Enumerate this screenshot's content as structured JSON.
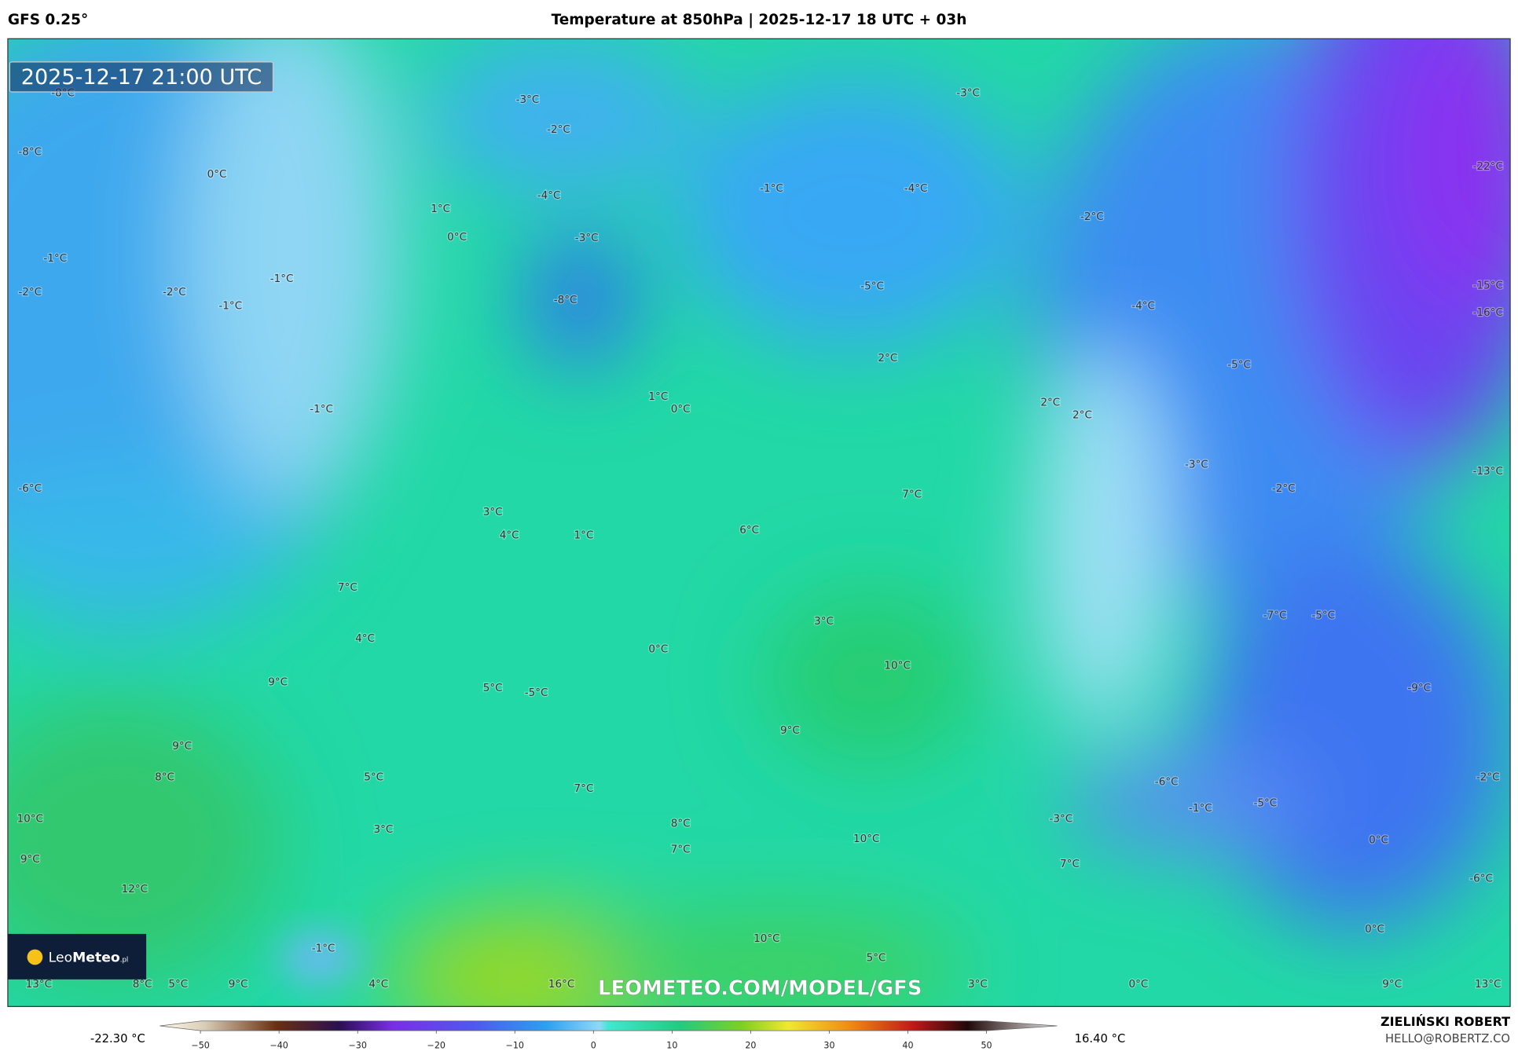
{
  "header": {
    "model": "GFS 0.25°",
    "title": "Temperature at 850hPa | 2025-12-17 18 UTC + 03h"
  },
  "map": {
    "timestamp": "2025-12-17 21:00 UTC",
    "labels": [
      "-8°C",
      "-3°C",
      "-2°C",
      "-3°C",
      "-8°C",
      "0°C",
      "-1°C",
      "-4°C",
      "-22°C",
      "-4°C",
      "1°C",
      "-2°C",
      "0°C",
      "-3°C",
      "-1°C",
      "-2°C",
      "-2°C",
      "-1°C",
      "-1°C",
      "-8°C",
      "-5°C",
      "-4°C",
      "-15°C",
      "-16°C",
      "2°C",
      "-5°C",
      "1°C",
      "0°C",
      "2°C",
      "2°C",
      "-1°C",
      "-3°C",
      "-13°C",
      "-6°C",
      "-2°C",
      "7°C",
      "3°C",
      "4°C",
      "1°C",
      "6°C",
      "7°C",
      "3°C",
      "-7°C",
      "-5°C",
      "4°C",
      "0°C",
      "10°C",
      "9°C",
      "5°C",
      "-5°C",
      "-9°C",
      "9°C",
      "9°C",
      "8°C",
      "5°C",
      "-6°C",
      "-2°C",
      "7°C",
      "-1°C",
      "-5°C",
      "10°C",
      "-3°C",
      "8°C",
      "3°C",
      "10°C",
      "0°C",
      "9°C",
      "7°C",
      "7°C",
      "12°C",
      "-6°C",
      "0°C",
      "10°C",
      "-1°C",
      "5°C",
      "13°C",
      "8°C",
      "5°C",
      "9°C",
      "4°C",
      "16°C",
      "3°C",
      "0°C",
      "9°C",
      "13°C"
    ],
    "watermark": "LEOMETEO.COM/MODEL/GFS",
    "logo": {
      "leo": "Leo",
      "meteo": "Meteo",
      "suffix": ".pl"
    }
  },
  "legend": {
    "min": "-22.30 °C",
    "max": "16.40 °C",
    "ticks": [
      "−50",
      "−40",
      "−30",
      "−20",
      "−10",
      "0",
      "10",
      "20",
      "30",
      "40",
      "50"
    ]
  },
  "credit": {
    "name": "ZIELIŃSKI ROBERT",
    "email": "HELLO@ROBERTZ.CO"
  }
}
